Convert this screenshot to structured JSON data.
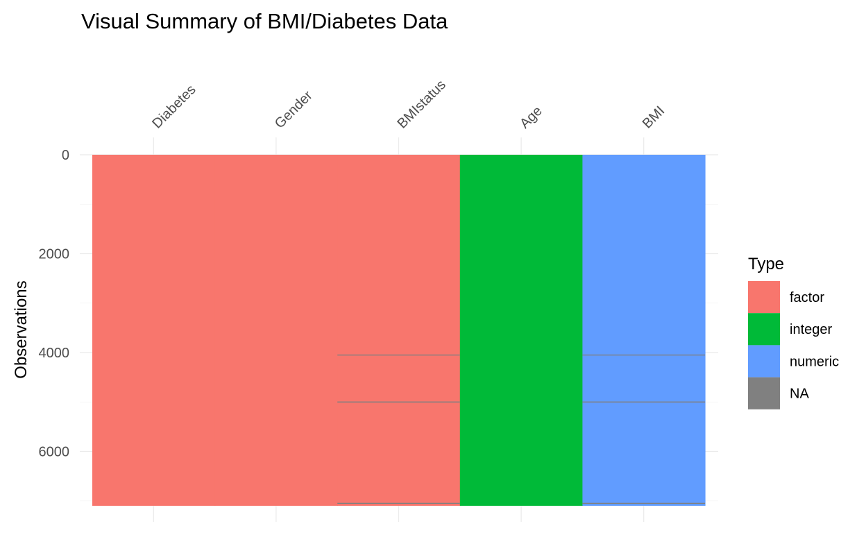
{
  "chart_data": {
    "type": "heatmap",
    "title": "Visual Summary of BMI/Diabetes Data",
    "xlabel": "",
    "ylabel": "Observations",
    "x_axis_position": "top",
    "y_reversed": true,
    "ylim": [
      0,
      7100
    ],
    "y_ticks": [
      0,
      2000,
      4000,
      6000
    ],
    "grid": true,
    "columns": [
      "Diabetes",
      "Gender",
      "BMIstatus",
      "Age",
      "BMI"
    ],
    "column_types": [
      "factor",
      "factor",
      "factor",
      "integer",
      "numeric"
    ],
    "n_observations": 7100,
    "missing": [
      {
        "column": "BMIstatus",
        "rows": [
          4050,
          5000,
          7050
        ]
      },
      {
        "column": "BMI",
        "rows": [
          4050,
          5000,
          7050
        ]
      }
    ],
    "legend": {
      "title": "Type",
      "position": "right",
      "entries": [
        {
          "label": "factor",
          "color": "#F8766D"
        },
        {
          "label": "integer",
          "color": "#00BA38"
        },
        {
          "label": "numeric",
          "color": "#619CFF"
        },
        {
          "label": "NA",
          "color": "#808080"
        }
      ]
    }
  }
}
